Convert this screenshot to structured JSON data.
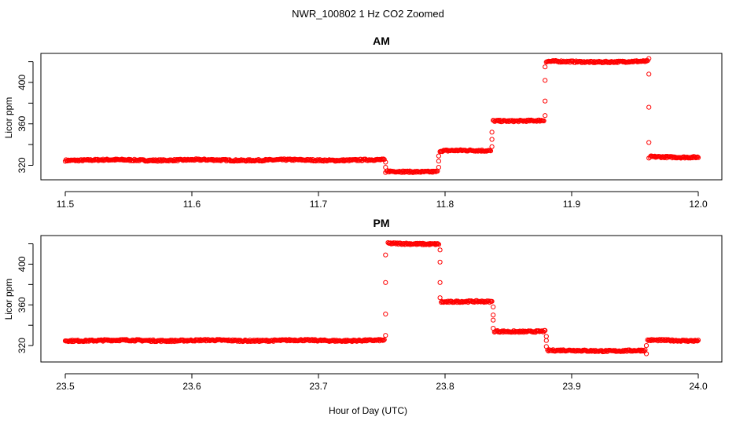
{
  "figure_title": "NWR_100802  1 Hz CO2 Zoomed",
  "shared_xlabel": "Hour of Day (UTC)",
  "colors": {
    "points": "#ff0000",
    "axes": "#000000",
    "background": "#ffffff"
  },
  "chart_data": [
    {
      "type": "scatter",
      "title": "AM",
      "xlabel": "",
      "ylabel": "Licor ppm",
      "xlim": [
        11.5,
        12.0
      ],
      "ylim": [
        309,
        425
      ],
      "xticks": [
        11.5,
        11.6,
        11.7,
        11.8,
        11.9,
        12.0
      ],
      "xtick_labels": [
        "11.5",
        "11.6",
        "11.7",
        "11.8",
        "11.9",
        "12.0"
      ],
      "yticks": [
        320,
        340,
        360,
        380,
        400,
        420
      ],
      "ytick_labels": [
        "320",
        "",
        "360",
        "",
        "400",
        ""
      ],
      "marker": "open-circle",
      "segments": [
        {
          "x": [
            11.5,
            11.752
          ],
          "y": 325
        },
        {
          "x": [
            11.754,
            11.794
          ],
          "y": 314
        },
        {
          "x": [
            11.796,
            11.836
          ],
          "y": 334
        },
        {
          "x": [
            11.838,
            11.878
          ],
          "y": 363
        },
        {
          "x": [
            11.88,
            11.96
          ],
          "y": 420
        },
        {
          "x": [
            11.962,
            12.0
          ],
          "y": 328
        }
      ],
      "transitions": [
        {
          "x": 11.753,
          "y": [
            323,
            318,
            313
          ]
        },
        {
          "x": 11.795,
          "y": [
            318,
            324,
            329
          ]
        },
        {
          "x": 11.837,
          "y": [
            338,
            345,
            352
          ]
        },
        {
          "x": 11.879,
          "y": [
            368,
            382,
            402,
            415
          ]
        },
        {
          "x": 11.961,
          "y": [
            423,
            408,
            376,
            342,
            327
          ]
        }
      ]
    },
    {
      "type": "scatter",
      "title": "PM",
      "xlabel": "",
      "ylabel": "Licor ppm",
      "xlim": [
        23.5,
        24.0
      ],
      "ylim": [
        307,
        425
      ],
      "xticks": [
        23.5,
        23.6,
        23.7,
        23.8,
        23.9,
        24.0
      ],
      "xtick_labels": [
        "23.5",
        "23.6",
        "23.7",
        "23.8",
        "23.9",
        "24.0"
      ],
      "yticks": [
        320,
        340,
        360,
        380,
        400,
        420
      ],
      "ytick_labels": [
        "320",
        "",
        "360",
        "",
        "400",
        ""
      ],
      "marker": "open-circle",
      "segments": [
        {
          "x": [
            23.5,
            23.752
          ],
          "y": 325
        },
        {
          "x": [
            23.755,
            23.795
          ],
          "y": 420
        },
        {
          "x": [
            23.797,
            23.837
          ],
          "y": 363
        },
        {
          "x": [
            23.839,
            23.879
          ],
          "y": 334
        },
        {
          "x": [
            23.881,
            23.958
          ],
          "y": 315
        },
        {
          "x": [
            23.96,
            24.0
          ],
          "y": 325
        }
      ],
      "transitions": [
        {
          "x": 23.753,
          "y": [
            330,
            351,
            382,
            409
          ]
        },
        {
          "x": 23.796,
          "y": [
            414,
            402,
            382,
            367
          ]
        },
        {
          "x": 23.838,
          "y": [
            358,
            350,
            345,
            337
          ]
        },
        {
          "x": 23.88,
          "y": [
            329,
            325,
            319
          ]
        },
        {
          "x": 23.959,
          "y": [
            312,
            320
          ]
        }
      ]
    }
  ]
}
